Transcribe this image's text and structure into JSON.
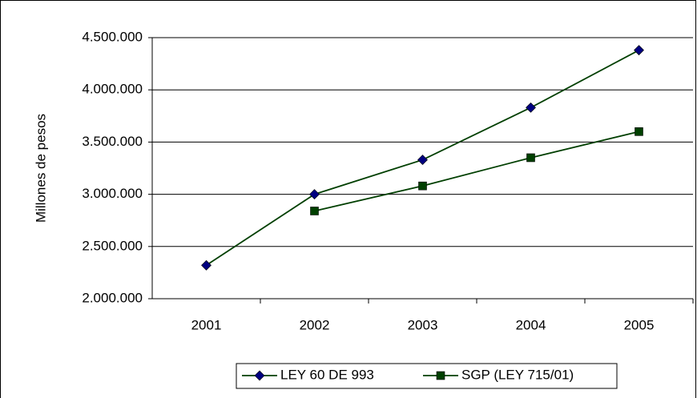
{
  "chart_data": {
    "type": "line",
    "y_label": "Millones de pesos",
    "categories": [
      "2001",
      "2002",
      "2003",
      "2004",
      "2005"
    ],
    "series": [
      {
        "name": "LEY 60 DE 993",
        "color": "#000080",
        "line_color": "#003f00",
        "marker": "diamond",
        "values": [
          2320000,
          3000000,
          3330000,
          3830000,
          4380000
        ]
      },
      {
        "name": "SGP (LEY 715/01)",
        "color": "#004000",
        "line_color": "#003f00",
        "marker": "square",
        "values": [
          null,
          2840000,
          3080000,
          3350000,
          3600000
        ]
      }
    ],
    "ylim": [
      2000000,
      4500000
    ],
    "yticks": [
      {
        "value": 2000000,
        "label": "2.000.000"
      },
      {
        "value": 2500000,
        "label": "2.500.000"
      },
      {
        "value": 3000000,
        "label": "3.000.000"
      },
      {
        "value": 3500000,
        "label": "3.500.000"
      },
      {
        "value": 4000000,
        "label": "4.000.000"
      },
      {
        "value": 4500000,
        "label": "4.500.000"
      }
    ],
    "grid": true,
    "legend": "bottom"
  }
}
